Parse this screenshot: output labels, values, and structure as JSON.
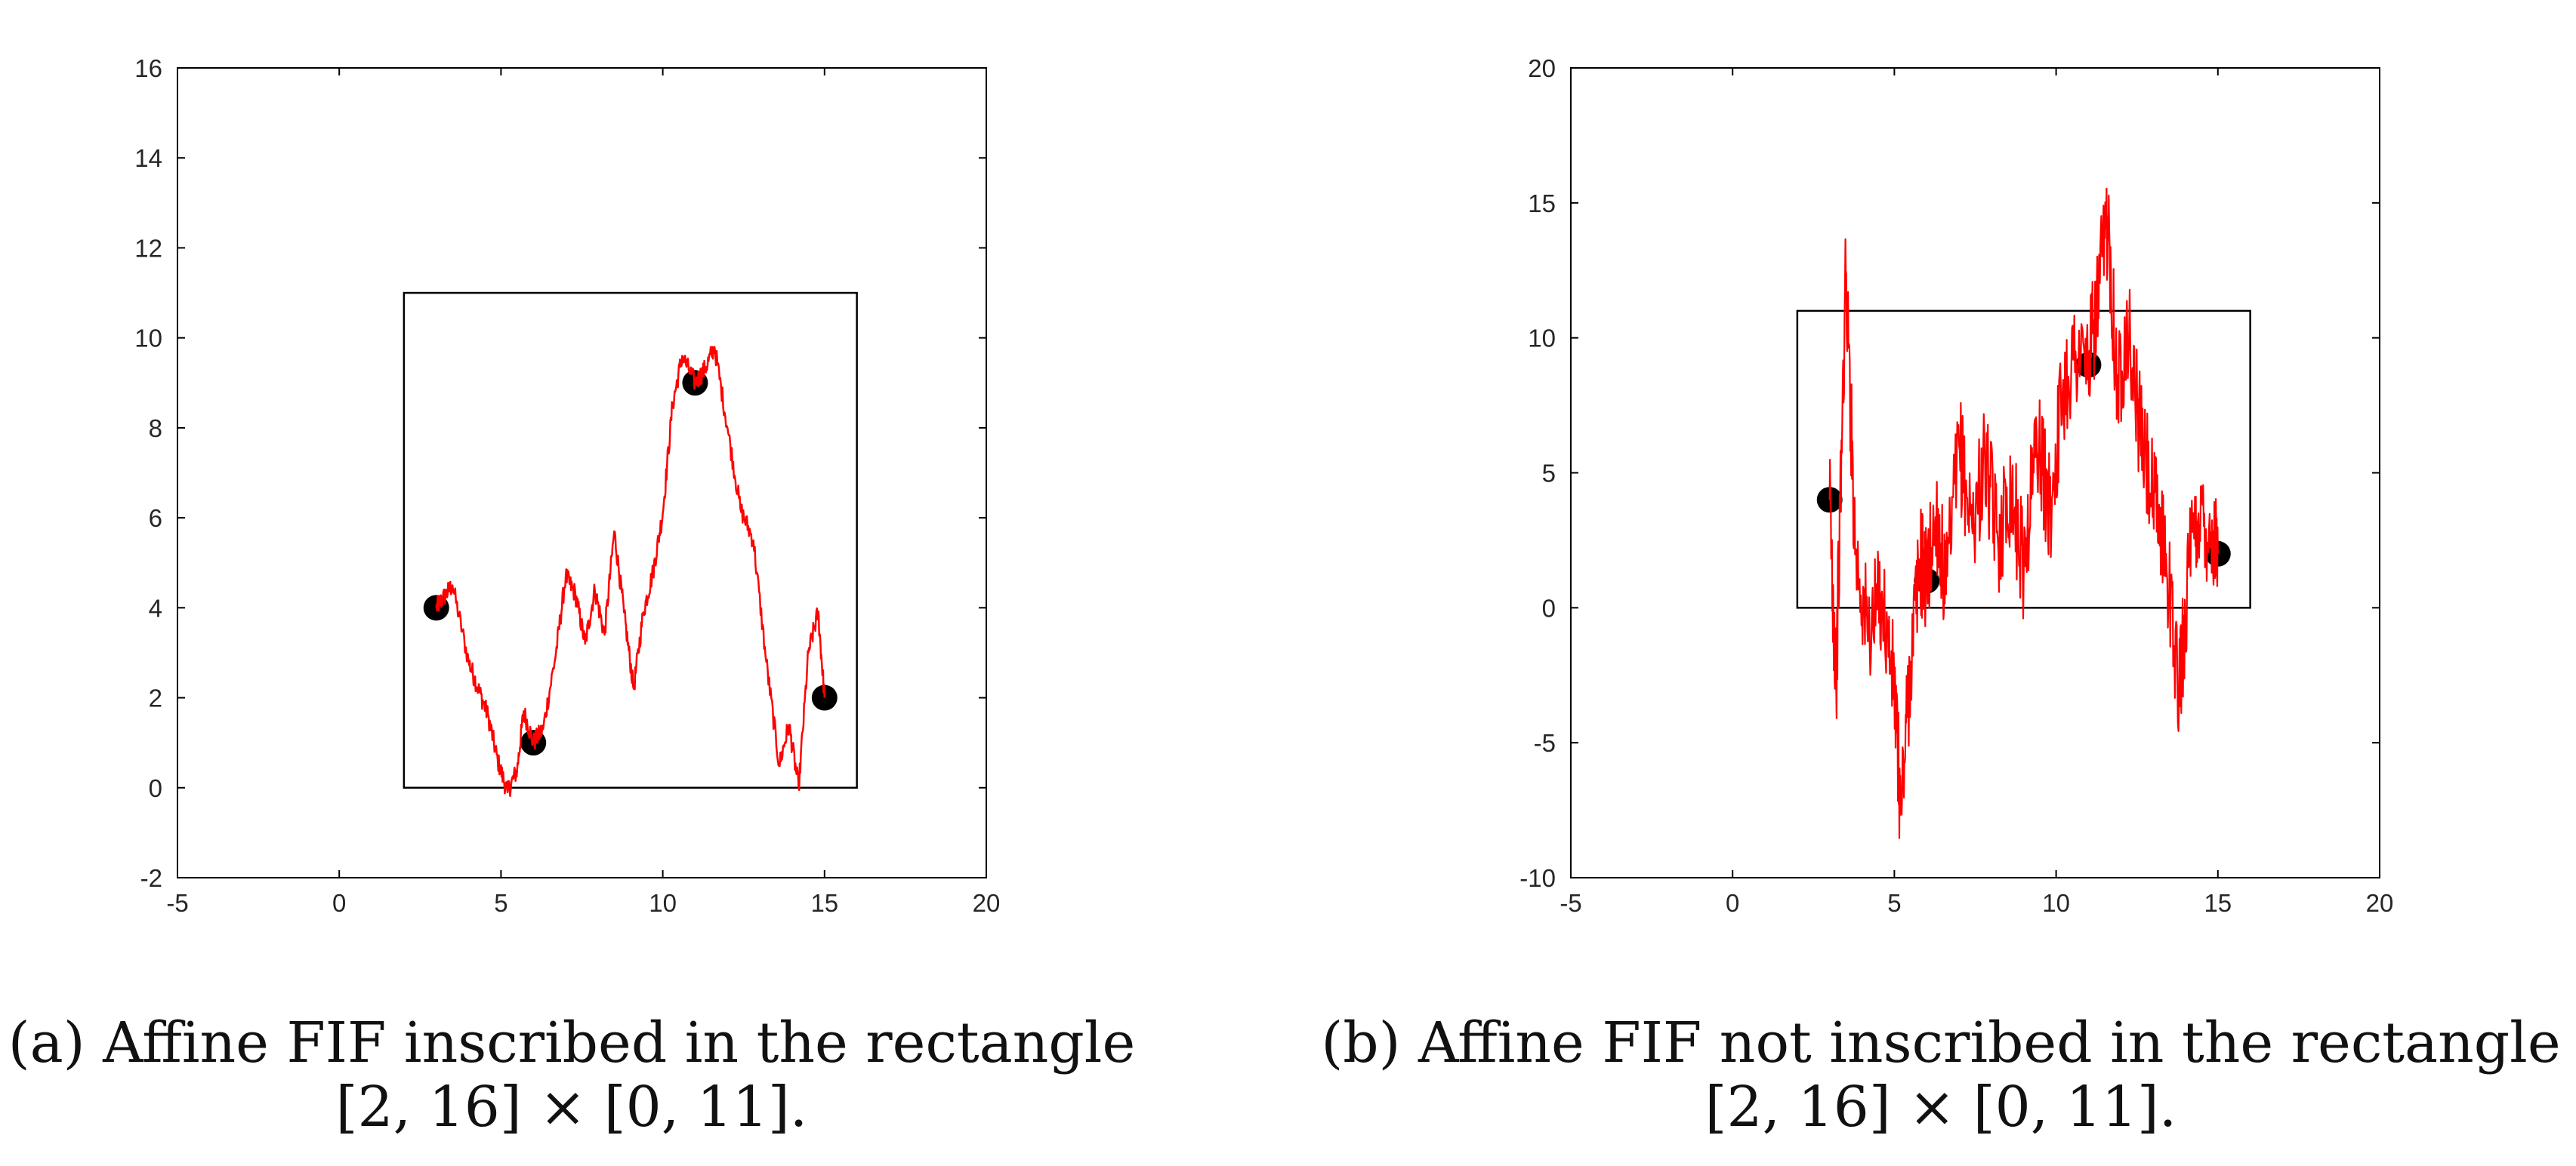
{
  "colors": {
    "curve": "#ff0000",
    "point": "#000000",
    "frame": "#000000",
    "rectangle": "#000000"
  },
  "chart_data": [
    {
      "type": "line",
      "title": "",
      "xlabel": "",
      "ylabel": "",
      "xlim": [
        -5,
        20
      ],
      "ylim": [
        -2,
        16
      ],
      "xticks": [
        "-5",
        "0",
        "5",
        "10",
        "15",
        "20"
      ],
      "yticks": [
        "-2",
        "0",
        "2",
        "4",
        "6",
        "8",
        "10",
        "12",
        "14",
        "16"
      ],
      "grid": false,
      "legend": "none",
      "rectangle": {
        "x": [
          2,
          16
        ],
        "y": [
          0,
          11
        ]
      },
      "interpolation_points": [
        {
          "x": 3,
          "y": 4
        },
        {
          "x": 6,
          "y": 1
        },
        {
          "x": 11,
          "y": 9
        },
        {
          "x": 15,
          "y": 2
        }
      ],
      "series": [
        {
          "x": [
            3,
            3.2,
            3.5,
            4.0,
            4.3,
            4.6,
            4.9,
            5.2,
            5.5,
            5.7,
            6.0,
            6.3,
            6.7,
            7.0,
            7.3,
            7.6,
            7.9,
            8.2,
            8.5,
            8.8,
            9.1,
            9.4,
            9.7,
            10.0,
            10.3,
            10.6,
            11.0,
            11.3,
            11.6,
            12.0,
            12.4,
            12.8,
            13.2,
            13.6,
            13.9,
            14.2,
            14.5,
            14.8,
            15.0
          ],
          "y": [
            4,
            4.2,
            4.5,
            2.8,
            2.2,
            1.6,
            0.6,
            -0.1,
            0.4,
            1.7,
            1.0,
            1.3,
            3.0,
            4.7,
            4.3,
            3.2,
            4.4,
            3.4,
            5.7,
            3.9,
            2.2,
            3.9,
            4.8,
            6.1,
            8.5,
            9.6,
            9.0,
            9.3,
            9.8,
            8.0,
            6.2,
            5.5,
            2.8,
            0.5,
            1.4,
            0.0,
            3.0,
            3.9,
            2.0
          ]
        }
      ]
    },
    {
      "type": "line",
      "title": "",
      "xlabel": "",
      "ylabel": "",
      "xlim": [
        -5,
        20
      ],
      "ylim": [
        -10,
        20
      ],
      "xticks": [
        "-5",
        "0",
        "5",
        "10",
        "15",
        "20"
      ],
      "yticks": [
        "-10",
        "-5",
        "0",
        "5",
        "10",
        "15",
        "20"
      ],
      "grid": false,
      "legend": "none",
      "rectangle": {
        "x": [
          2,
          16
        ],
        "y": [
          0,
          11
        ]
      },
      "interpolation_points": [
        {
          "x": 3,
          "y": 4
        },
        {
          "x": 6,
          "y": 1
        },
        {
          "x": 11,
          "y": 9
        },
        {
          "x": 15,
          "y": 2
        }
      ],
      "series": [
        {
          "x": [
            3,
            3.2,
            3.5,
            3.8,
            4.2,
            4.6,
            5.0,
            5.2,
            5.5,
            5.8,
            6.0,
            6.3,
            6.6,
            7.0,
            7.4,
            7.8,
            8.2,
            8.6,
            9.0,
            9.4,
            9.8,
            10.2,
            10.6,
            11.0,
            11.3,
            11.6,
            11.9,
            12.2,
            12.6,
            13.0,
            13.4,
            13.8,
            14.1,
            14.4,
            14.8,
            15.0
          ],
          "y": [
            4,
            -2.8,
            12.5,
            2.0,
            -1.0,
            0.5,
            -3.0,
            -7.6,
            -2.0,
            1.8,
            1.0,
            3.5,
            0.5,
            6.0,
            3.0,
            5.5,
            2.5,
            4.5,
            1.5,
            6.5,
            3.5,
            8.0,
            9.5,
            9.0,
            11.5,
            14.5,
            8.0,
            10.5,
            6.5,
            4.0,
            2.0,
            -3.2,
            1.5,
            3.5,
            2.8,
            2.0
          ]
        }
      ]
    }
  ],
  "captions": [
    {
      "line1": "(a) Affine FIF inscribed in the rectangle",
      "line2": "[2, 16] × [0, 11]."
    },
    {
      "line1": "(b) Affine FIF not inscribed in the rectangle",
      "line2": "[2, 16] × [0, 11]."
    }
  ]
}
